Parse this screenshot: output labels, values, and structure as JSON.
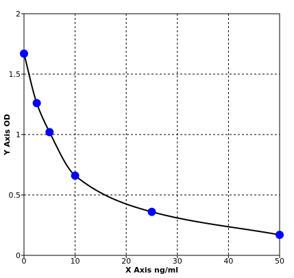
{
  "chart_data": {
    "type": "scatter",
    "title": "",
    "xlabel": "X  Axis ng/ml",
    "ylabel": "Y  Axis OD",
    "xlim": [
      0,
      50
    ],
    "ylim": [
      0,
      2
    ],
    "x_ticks": [
      0,
      10,
      20,
      30,
      40,
      50
    ],
    "x_tick_labels": [
      "0",
      "10",
      "20",
      "30",
      "40",
      "50"
    ],
    "y_ticks": [
      0,
      0.5,
      1,
      1.5,
      2
    ],
    "y_tick_labels": [
      "0",
      "0.5",
      "1",
      "1.5",
      "2"
    ],
    "grid": true,
    "grid_style": "dashed",
    "series": [
      {
        "x": [
          0,
          2.5,
          5,
          10,
          25,
          50
        ],
        "y": [
          1.67,
          1.26,
          1.02,
          0.66,
          0.36,
          0.17
        ],
        "marker_color": "#0000ff",
        "fit_line_color": "#000000",
        "fit_line": true
      }
    ]
  }
}
